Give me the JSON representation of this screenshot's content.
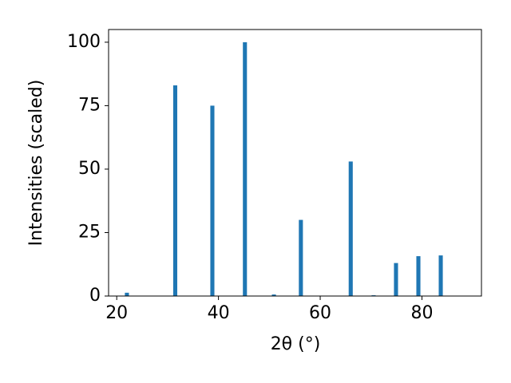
{
  "chart_data": {
    "type": "bar",
    "x_label": "2θ (°)",
    "y_label": "Intensities (scaled)",
    "x": [
      22.0,
      31.5,
      38.8,
      45.2,
      50.9,
      56.2,
      66.0,
      70.5,
      74.9,
      79.3,
      83.7
    ],
    "values": [
      1.3,
      83,
      75,
      100,
      0.6,
      30,
      53,
      0.3,
      13,
      15.7,
      16
    ],
    "color": "#1f77b4",
    "bar_width": 0.8,
    "xlim": [
      18.4,
      91.7
    ],
    "xticks": [
      20,
      40,
      60,
      80
    ],
    "ylim": [
      0,
      105
    ],
    "yticks": [
      0,
      25,
      50,
      75,
      100
    ],
    "grid": false
  }
}
